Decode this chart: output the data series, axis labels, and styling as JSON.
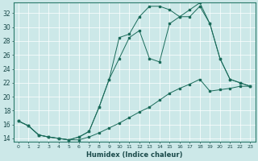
{
  "xlabel": "Humidex (Indice chaleur)",
  "background_color": "#cce8e8",
  "line_color": "#1a6b5a",
  "xlim": [
    -0.5,
    23.5
  ],
  "ylim": [
    13.5,
    33.5
  ],
  "yticks": [
    14,
    16,
    18,
    20,
    22,
    24,
    26,
    28,
    30,
    32
  ],
  "xticks": [
    0,
    1,
    2,
    3,
    4,
    5,
    6,
    7,
    8,
    9,
    10,
    11,
    12,
    13,
    14,
    15,
    16,
    17,
    18,
    19,
    20,
    21,
    22,
    23
  ],
  "line1_x": [
    0,
    1,
    2,
    3,
    4,
    5,
    6,
    7,
    8,
    9,
    10,
    11,
    12,
    13,
    14,
    15,
    16,
    17,
    18,
    19,
    20,
    21,
    22,
    23
  ],
  "line1_y": [
    16.5,
    15.8,
    14.5,
    14.2,
    14.0,
    13.8,
    13.8,
    14.2,
    14.8,
    15.5,
    16.2,
    17.0,
    17.8,
    18.5,
    19.5,
    20.5,
    21.2,
    21.8,
    22.5,
    20.8,
    21.0,
    21.2,
    21.5,
    21.5
  ],
  "line2_x": [
    0,
    1,
    2,
    3,
    4,
    5,
    6,
    7,
    8,
    9,
    10,
    11,
    12,
    13,
    14,
    15,
    16,
    17,
    18,
    19,
    20,
    21,
    22,
    23
  ],
  "line2_y": [
    16.5,
    15.8,
    14.5,
    14.2,
    14.0,
    13.8,
    14.2,
    15.0,
    18.5,
    22.5,
    25.5,
    28.5,
    29.5,
    25.5,
    25.0,
    30.5,
    31.5,
    31.5,
    33.0,
    30.5,
    25.5,
    22.5,
    22.0,
    21.5
  ],
  "line3_x": [
    0,
    1,
    2,
    3,
    4,
    5,
    6,
    7,
    8,
    9,
    10,
    11,
    12,
    13,
    14,
    15,
    16,
    17,
    18,
    19,
    20,
    21,
    22,
    23
  ],
  "line3_y": [
    16.5,
    15.8,
    14.5,
    14.2,
    14.0,
    13.8,
    14.2,
    15.0,
    18.5,
    22.5,
    28.5,
    29.0,
    31.5,
    33.0,
    33.0,
    32.5,
    31.5,
    32.5,
    33.5,
    30.5,
    25.5,
    22.5,
    22.0,
    21.5
  ]
}
